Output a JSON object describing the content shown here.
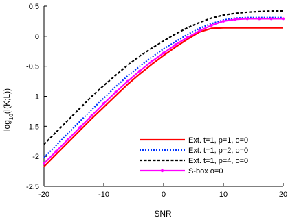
{
  "chart_data": {
    "type": "line",
    "title": "",
    "xlabel": "SNR",
    "ylabel_parts": {
      "base": "log",
      "sub": "10",
      "rest": "(I(K;L))"
    },
    "xlim": [
      -20,
      20
    ],
    "ylim": [
      -2.5,
      0.5
    ],
    "xticks": [
      -20,
      -10,
      0,
      10,
      20
    ],
    "yticks": [
      0.5,
      0,
      -0.5,
      -1,
      -1.5,
      -2,
      -2.5
    ],
    "xtick_labels": [
      "-20",
      "-10",
      "0",
      "10",
      "20"
    ],
    "ytick_labels": [
      "0.5",
      "0",
      "-0.5",
      "-1",
      "-1.5",
      "-2",
      "-2.5"
    ],
    "grid": false,
    "legend_position": "bottom-right",
    "x": [
      -20,
      -18,
      -16,
      -14,
      -12,
      -10,
      -8,
      -6,
      -4,
      -2,
      0,
      2,
      4,
      6,
      8,
      10,
      12,
      14,
      16,
      18,
      20
    ],
    "series": [
      {
        "name": "Ext. t=1, p=1, o=0",
        "color": "#ff0000",
        "style": "solid",
        "values": [
          -2.17,
          -1.97,
          -1.77,
          -1.57,
          -1.37,
          -1.18,
          -0.99,
          -0.8,
          -0.63,
          -0.47,
          -0.32,
          -0.18,
          -0.05,
          0.07,
          0.13,
          0.14,
          0.14,
          0.14,
          0.14,
          0.14,
          0.14
        ]
      },
      {
        "name": "Ext. t=1, p=2, o=0",
        "color": "#0033ff",
        "style": "dotted",
        "values": [
          -2.02,
          -1.82,
          -1.62,
          -1.42,
          -1.22,
          -1.03,
          -0.84,
          -0.66,
          -0.5,
          -0.35,
          -0.21,
          -0.09,
          0.03,
          0.13,
          0.21,
          0.27,
          0.3,
          0.31,
          0.31,
          0.31,
          0.31
        ]
      },
      {
        "name": "Ext. t=1, p=4, o=0",
        "color": "#000000",
        "style": "dashed",
        "values": [
          -1.8,
          -1.6,
          -1.4,
          -1.2,
          -1.0,
          -0.82,
          -0.65,
          -0.48,
          -0.33,
          -0.2,
          -0.08,
          0.04,
          0.14,
          0.23,
          0.3,
          0.35,
          0.38,
          0.4,
          0.41,
          0.42,
          0.42
        ]
      },
      {
        "name": "S-box o=0",
        "color": "#ff00ff",
        "style": "solid-markers",
        "values": [
          -2.12,
          -1.92,
          -1.72,
          -1.52,
          -1.32,
          -1.12,
          -0.93,
          -0.75,
          -0.58,
          -0.42,
          -0.28,
          -0.14,
          -0.02,
          0.09,
          0.18,
          0.25,
          0.28,
          0.29,
          0.29,
          0.29,
          0.29
        ]
      }
    ]
  }
}
